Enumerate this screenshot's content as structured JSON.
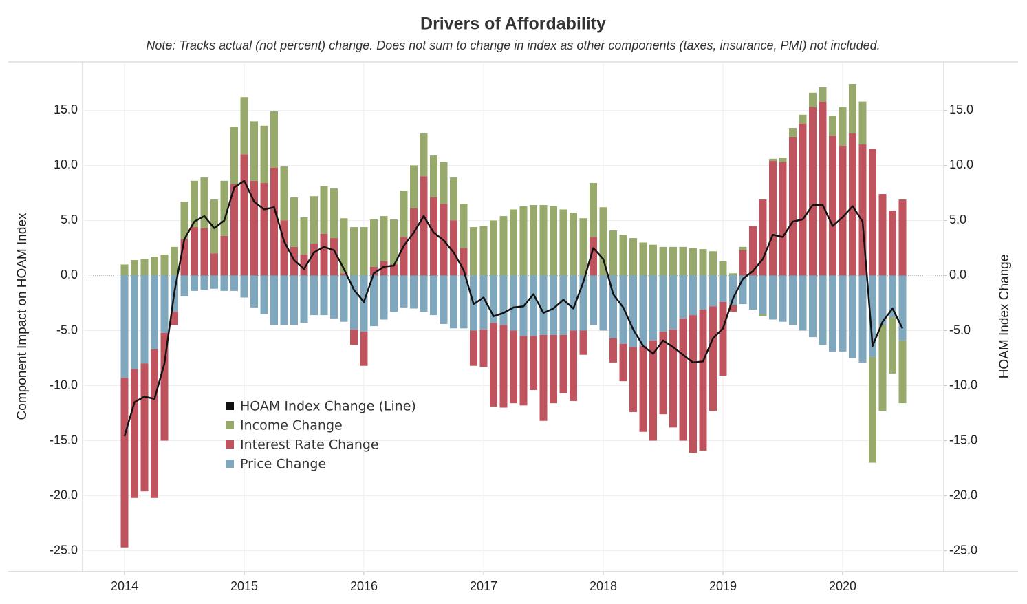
{
  "chart_data": {
    "type": "bar",
    "title": "Drivers of Affordability",
    "subtitle": "Note: Tracks actual (not percent) change. Does not sum to change in index as other components (taxes, insurance, PMI) not included.",
    "y_label": "Component Impact on HOAM Index",
    "y2_label": "HOAM Index Change",
    "categories": [
      "2014",
      null,
      null,
      null,
      null,
      null,
      null,
      null,
      null,
      null,
      null,
      null,
      "2015",
      null,
      null,
      null,
      null,
      null,
      null,
      null,
      null,
      null,
      null,
      null,
      "2016",
      null,
      null,
      null,
      null,
      null,
      null,
      null,
      null,
      null,
      null,
      null,
      "2017",
      null,
      null,
      null,
      null,
      null,
      null,
      null,
      null,
      null,
      null,
      null,
      "2018",
      null,
      null,
      null,
      null,
      null,
      null,
      null,
      null,
      null,
      null,
      null,
      "2019",
      null,
      null,
      null,
      null,
      null,
      null,
      null,
      null,
      null,
      null,
      null,
      "2020",
      null,
      null,
      null,
      null,
      null,
      null
    ],
    "stacked": true,
    "series": [
      {
        "name": "Price Change",
        "type": "bar",
        "color": "#7fa7be",
        "values": [
          -9.3,
          -8.5,
          -8.0,
          -6.7,
          -5.2,
          -3.3,
          -1.9,
          -1.4,
          -1.3,
          -1.2,
          -1.4,
          -1.4,
          -2.0,
          -2.9,
          -3.5,
          -4.5,
          -4.5,
          -4.5,
          -4.3,
          -3.6,
          -3.6,
          -3.9,
          -4.2,
          -4.9,
          -5.1,
          -4.6,
          -4.0,
          -3.3,
          -2.9,
          -3.0,
          -3.3,
          -3.6,
          -4.4,
          -4.8,
          -4.8,
          -5.0,
          -4.9,
          -4.3,
          -4.5,
          -5.0,
          -5.5,
          -5.5,
          -5.4,
          -5.4,
          -5.4,
          -5.0,
          -5.0,
          -4.5,
          -5.0,
          -5.7,
          -6.2,
          -6.5,
          -6.4,
          -5.9,
          -5.1,
          -4.9,
          -3.9,
          -3.6,
          -3.1,
          -2.8,
          -2.4,
          -2.7,
          -2.6,
          -3.1,
          -3.5,
          -4.0,
          -4.2,
          -4.5,
          -5.0,
          -5.6,
          -6.3,
          -6.9,
          -6.9,
          -7.5,
          -7.9,
          -7.4,
          -4.5,
          -3.8,
          -5.9
        ]
      },
      {
        "name": "Interest Rate Change",
        "type": "bar",
        "color": "#c0545e",
        "values": [
          -15.4,
          -11.7,
          -11.6,
          -13.5,
          -9.8,
          -1.2,
          3.3,
          4.4,
          4.3,
          2.0,
          3.6,
          8.3,
          11.0,
          8.6,
          8.4,
          9.8,
          5.0,
          2.6,
          1.9,
          2.9,
          3.8,
          3.4,
          0.2,
          -1.4,
          -3.1,
          0.8,
          1.3,
          1.0,
          3.5,
          6.1,
          9.0,
          7.1,
          6.5,
          5.0,
          2.5,
          -3.2,
          -3.4,
          -7.6,
          -7.5,
          -6.6,
          -6.3,
          -4.9,
          -7.8,
          -6.2,
          -5.3,
          -6.4,
          -2.2,
          3.5,
          0.0,
          -2.2,
          -3.4,
          -5.9,
          -7.8,
          -9.1,
          -7.5,
          -8.9,
          -11.1,
          -12.5,
          -12.8,
          -9.5,
          -6.7,
          -0.6,
          2.3,
          4.5,
          6.9,
          10.4,
          10.3,
          12.6,
          13.8,
          15.3,
          15.8,
          12.7,
          11.8,
          12.9,
          11.9,
          11.5,
          7.4,
          5.9,
          6.9
        ]
      },
      {
        "name": "Income Change",
        "type": "bar",
        "color": "#97aa6b",
        "values": [
          1.0,
          1.4,
          1.5,
          1.7,
          1.9,
          2.6,
          3.4,
          4.2,
          4.6,
          4.9,
          5.0,
          5.2,
          5.2,
          5.4,
          5.2,
          5.1,
          4.9,
          4.5,
          3.4,
          4.3,
          4.3,
          4.5,
          5.0,
          4.4,
          4.4,
          4.3,
          4.1,
          4.1,
          4.2,
          3.9,
          3.9,
          3.8,
          3.8,
          3.9,
          4.0,
          4.4,
          4.5,
          5.0,
          5.4,
          6.0,
          6.3,
          6.4,
          6.4,
          6.3,
          6.0,
          5.7,
          5.2,
          4.9,
          6.2,
          4.1,
          3.7,
          3.4,
          3.0,
          2.8,
          2.6,
          2.6,
          2.6,
          2.5,
          2.4,
          2.2,
          1.3,
          0.2,
          0.3,
          0.0,
          -0.2,
          0.2,
          0.4,
          0.8,
          0.8,
          1.3,
          1.3,
          1.8,
          3.5,
          4.5,
          3.9,
          -9.6,
          -7.8,
          -5.1,
          -5.7
        ]
      },
      {
        "name": "HOAM Index Change (Line)",
        "type": "line",
        "axis": "y2",
        "color": "#111111",
        "values": [
          -14.6,
          -11.5,
          -11.0,
          -11.2,
          -8.0,
          -1.5,
          3.3,
          4.9,
          5.4,
          4.3,
          5.0,
          8.0,
          8.6,
          6.7,
          6.0,
          6.2,
          3.1,
          1.4,
          0.6,
          2.1,
          2.6,
          2.3,
          0.6,
          -1.3,
          -2.4,
          0.2,
          0.8,
          0.9,
          2.7,
          3.9,
          5.4,
          3.9,
          3.2,
          2.1,
          0.5,
          -2.6,
          -2.0,
          -3.7,
          -3.4,
          -2.9,
          -2.8,
          -1.7,
          -3.4,
          -3.0,
          -2.2,
          -3.0,
          -0.6,
          2.5,
          1.5,
          -1.7,
          -2.9,
          -4.9,
          -6.4,
          -7.1,
          -5.9,
          -6.5,
          -7.2,
          -7.9,
          -7.8,
          -5.7,
          -4.8,
          -2.1,
          -0.3,
          0.4,
          1.5,
          3.7,
          3.5,
          4.9,
          5.1,
          6.4,
          6.4,
          4.5,
          5.3,
          6.3,
          4.9,
          -6.4,
          -4.2,
          -3.0,
          -4.8
        ]
      }
    ],
    "ylim": [
      -26.9,
      19.4
    ],
    "yticks": [
      {
        "value": -25,
        "label": "-25.0"
      },
      {
        "value": -20,
        "label": "-20.0"
      },
      {
        "value": -15,
        "label": "-15.0"
      },
      {
        "value": -10,
        "label": "-10.0"
      },
      {
        "value": -5,
        "label": "-5.0"
      },
      {
        "value": 0,
        "label": "0.0"
      },
      {
        "value": 5,
        "label": "5.0"
      },
      {
        "value": 10,
        "label": "10.0"
      },
      {
        "value": 15,
        "label": "15.0"
      }
    ],
    "y2lim": [
      -26.9,
      19.4
    ],
    "y2ticks": [
      {
        "value": -25,
        "label": "-25.0"
      },
      {
        "value": -20,
        "label": "-20.0"
      },
      {
        "value": -15,
        "label": "-15.0"
      },
      {
        "value": -10,
        "label": "-10.0"
      },
      {
        "value": -5,
        "label": "-5.0"
      },
      {
        "value": 0,
        "label": "0.0"
      },
      {
        "value": 5,
        "label": "5.0"
      },
      {
        "value": 10,
        "label": "10.0"
      },
      {
        "value": 15,
        "label": "15.0"
      }
    ],
    "grid": true,
    "legend": "bottom-left"
  }
}
